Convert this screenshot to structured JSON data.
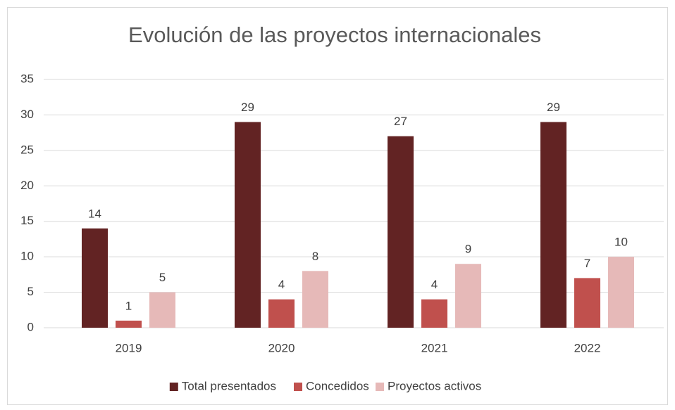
{
  "chart_data": {
    "type": "bar",
    "title": "Evolución de las proyectos internacionales",
    "categories": [
      "2019",
      "2020",
      "2021",
      "2022"
    ],
    "series": [
      {
        "name": "Total presentados",
        "color": "#622323",
        "values": [
          14,
          29,
          27,
          29
        ]
      },
      {
        "name": "Concedidos",
        "color": "#c0504d",
        "values": [
          1,
          4,
          4,
          7
        ]
      },
      {
        "name": "Proyectos activos",
        "color": "#e6b9b8",
        "values": [
          5,
          8,
          9,
          10
        ]
      }
    ],
    "ylim": [
      0,
      35
    ],
    "yticks": [
      0,
      5,
      10,
      15,
      20,
      25,
      30,
      35
    ],
    "grid": true,
    "legend": "bottom"
  }
}
